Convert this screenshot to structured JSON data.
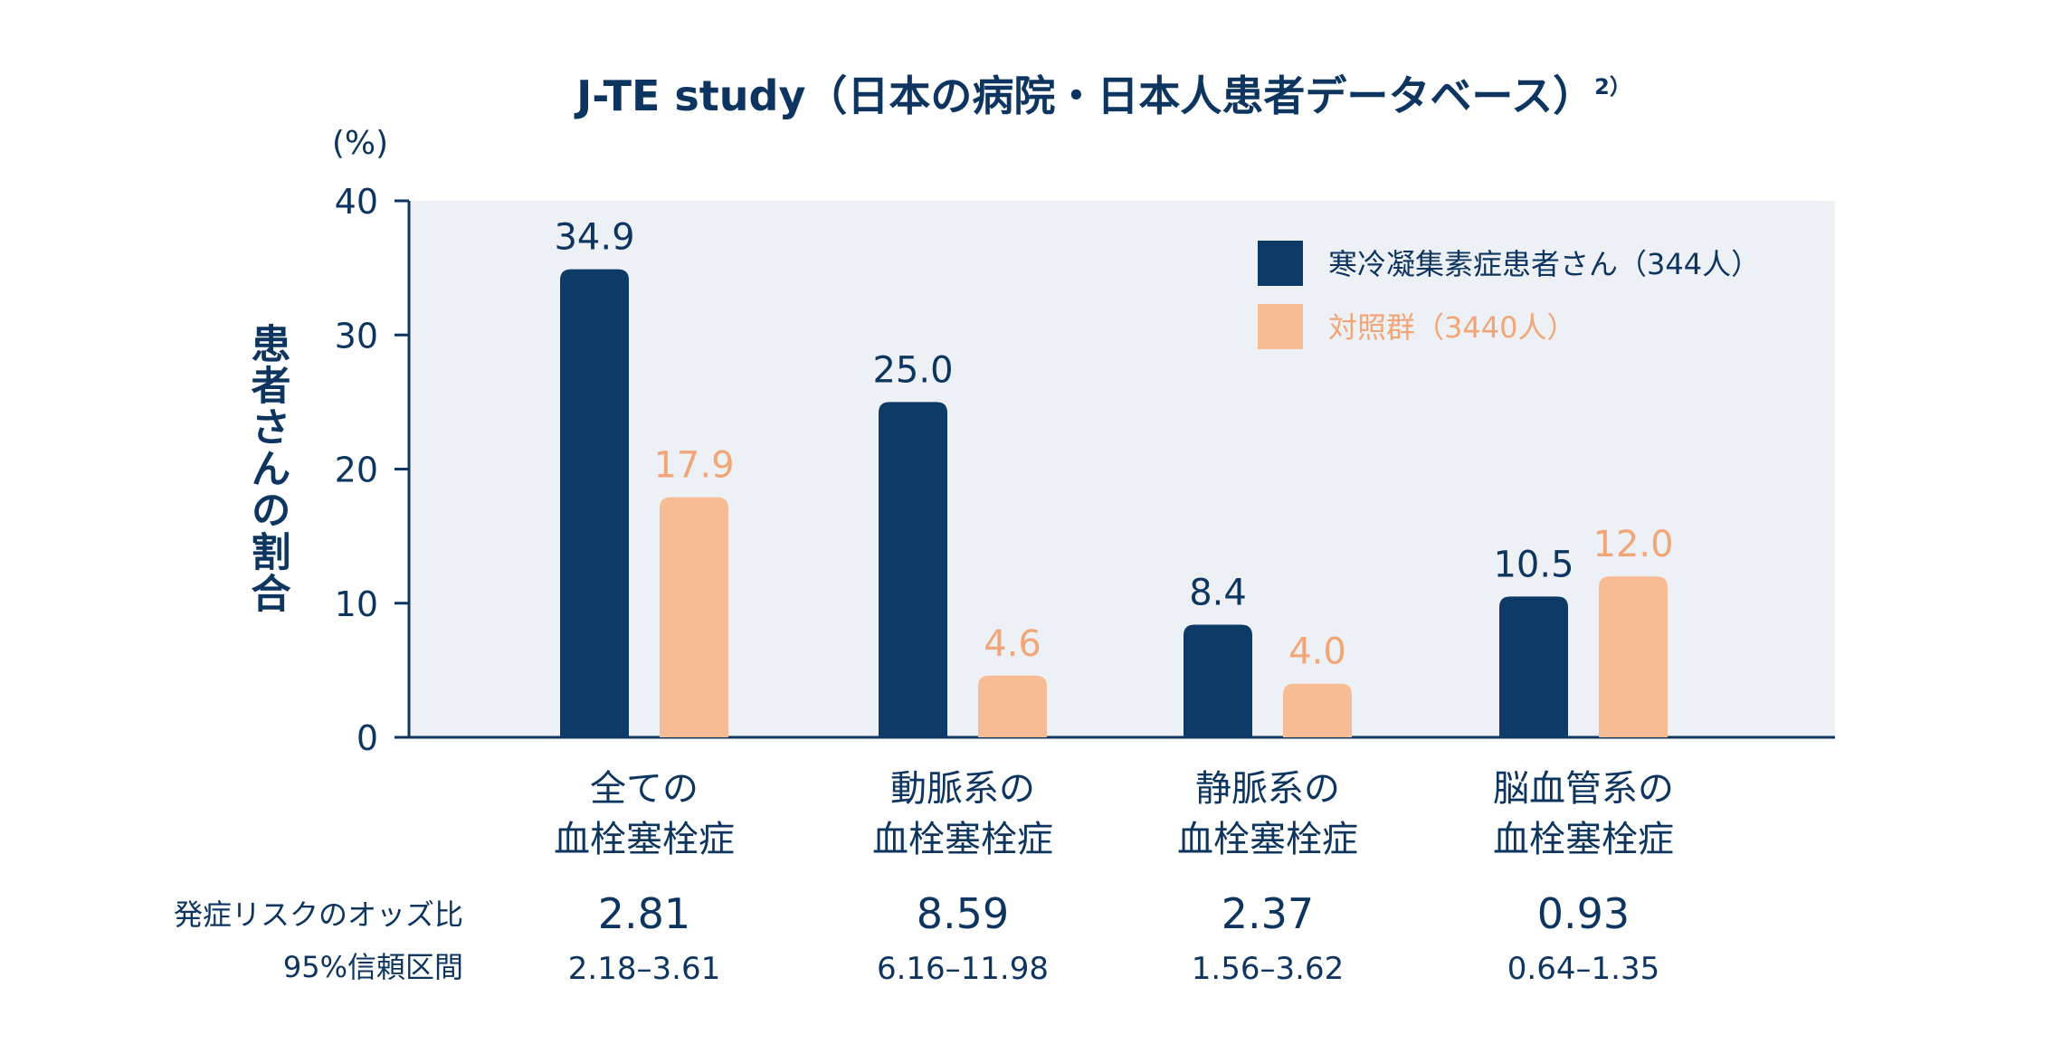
{
  "chart_data": {
    "type": "bar",
    "title": "J-TE study（日本の病院・日本人患者データベース）",
    "title_superscript": "2）",
    "unit_label": "(%)",
    "ylabel": "患者さんの割合",
    "ylim": [
      0,
      40
    ],
    "yticks": [
      "40",
      "30",
      "20",
      "10",
      "0"
    ],
    "categories": [
      [
        "全ての",
        "血栓塞栓症"
      ],
      [
        "動脈系の",
        "血栓塞栓症"
      ],
      [
        "静脈系の",
        "血栓塞栓症"
      ],
      [
        "脳血管系の",
        "血栓塞栓症"
      ]
    ],
    "series": [
      {
        "name": "寒冷凝集素症患者さん（344人）",
        "color": "#0d3a66",
        "label_color": "#0d355f",
        "values": [
          34.9,
          25.0,
          8.4,
          10.5
        ],
        "labels": [
          "34.9",
          "25.0",
          "8.4",
          "10.5"
        ]
      },
      {
        "name": "対照群（3440人）",
        "color": "#f7bc93",
        "label_color": "#f2a577",
        "values": [
          17.9,
          4.6,
          4.0,
          12.0
        ],
        "labels": [
          "17.9",
          "4.6",
          "4.0",
          "12.0"
        ]
      }
    ],
    "legend_position": "top-right",
    "odds_label": "発症リスクのオッズ比",
    "ci_label": "95%信頼区間",
    "odds_ratios": [
      "2.81",
      "8.59",
      "2.37",
      "0.93"
    ],
    "confidence_intervals": [
      "2.18–3.61",
      "6.16–11.98",
      "1.56–3.62",
      "0.64–1.35"
    ],
    "plot_background": "#edf1f5"
  }
}
